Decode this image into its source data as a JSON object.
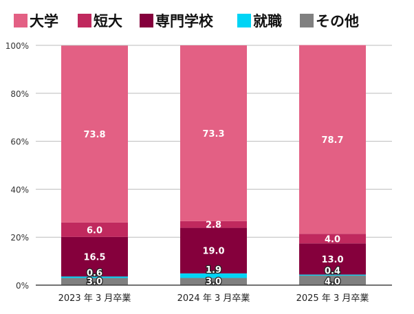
{
  "chart_data": {
    "type": "bar",
    "stacked": true,
    "categories": [
      "2023 年 3 月卒業",
      "2024 年 3 月卒業",
      "2025 年 3 月卒業"
    ],
    "series": [
      {
        "name": "その他",
        "color": "#808080",
        "values": [
          3.0,
          3.0,
          4.0
        ],
        "labels": [
          "3.0",
          "3.0",
          "4.0"
        ]
      },
      {
        "name": "就職",
        "color": "#00d4f5",
        "values": [
          0.6,
          1.9,
          0.4
        ],
        "labels": [
          "0.6",
          "1.9",
          "0.4"
        ]
      },
      {
        "name": "専門学校",
        "color": "#85003c",
        "values": [
          16.5,
          19.0,
          13.0
        ],
        "labels": [
          "16.5",
          "19.0",
          "13.0"
        ]
      },
      {
        "name": "短大",
        "color": "#c0295e",
        "values": [
          6.0,
          2.8,
          4.0
        ],
        "labels": [
          "6.0",
          "2.8",
          "4.0"
        ]
      },
      {
        "name": "大学",
        "color": "#e36084",
        "values": [
          73.8,
          73.3,
          78.7
        ],
        "labels": [
          "73.8",
          "73.3",
          "78.7"
        ]
      }
    ],
    "legend_order": [
      "大学",
      "短大",
      "専門学校",
      "就職",
      "その他"
    ],
    "legend_position": "top",
    "ylim": [
      0,
      100
    ],
    "yticks": [
      "0%",
      "20%",
      "40%",
      "60%",
      "80%",
      "100%"
    ],
    "grid": true
  }
}
